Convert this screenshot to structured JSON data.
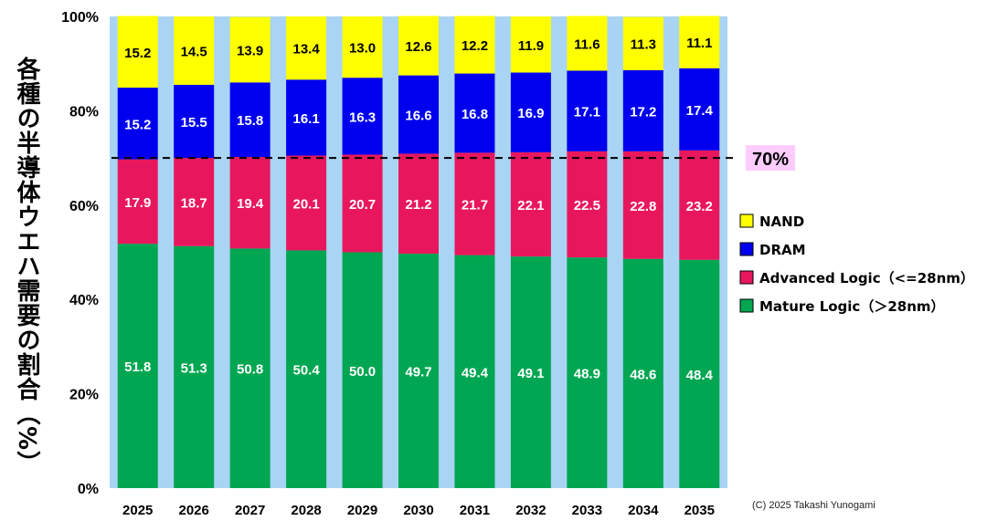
{
  "chart_data": {
    "type": "bar",
    "stacked": true,
    "ylabel": "各種の半導体ウエハ需要の割合（%）",
    "yticks": [
      "0%",
      "20%",
      "40%",
      "60%",
      "80%",
      "100%"
    ],
    "ylim": [
      0,
      100
    ],
    "categories": [
      "2025",
      "2026",
      "2027",
      "2028",
      "2029",
      "2030",
      "2031",
      "2032",
      "2033",
      "2034",
      "2035"
    ],
    "series": [
      {
        "name": "Mature Logic（＞28nm）",
        "color": "#00a651",
        "label_color": "#ffffff",
        "values": [
          51.8,
          51.3,
          50.8,
          50.4,
          50.0,
          49.7,
          49.4,
          49.1,
          48.9,
          48.6,
          48.4
        ]
      },
      {
        "name": "Advanced Logic（<=28nm）",
        "color": "#e8175d",
        "label_color": "#ffffff",
        "values": [
          17.9,
          18.7,
          19.4,
          20.1,
          20.7,
          21.2,
          21.7,
          22.1,
          22.5,
          22.8,
          23.2
        ]
      },
      {
        "name": "DRAM",
        "color": "#0000ee",
        "label_color": "#ffffff",
        "values": [
          15.2,
          15.5,
          15.8,
          16.1,
          16.3,
          16.6,
          16.8,
          16.9,
          17.1,
          17.2,
          17.4
        ]
      },
      {
        "name": "NAND",
        "color": "#ffff00",
        "label_color": "#000000",
        "values": [
          15.2,
          14.5,
          13.9,
          13.4,
          13.0,
          12.6,
          12.2,
          11.9,
          11.6,
          11.3,
          11.1
        ]
      }
    ],
    "legend_order": [
      "NAND",
      "DRAM",
      "Advanced Logic（<=28nm）",
      "Mature Logic（＞28nm）"
    ],
    "legend_placement": "right",
    "reference_line": {
      "value": 70,
      "label": "70%",
      "style": "dashed",
      "label_bg": "#ffccff"
    },
    "plot_background": "#a9d4f4",
    "grid": false
  },
  "credit": "(C) 2025 Takashi Yunogami"
}
